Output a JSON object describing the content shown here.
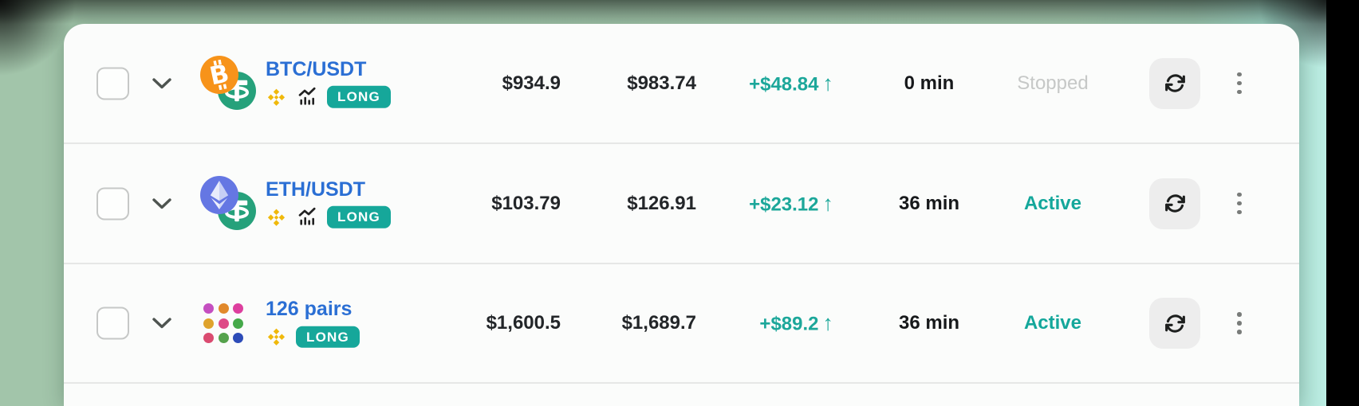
{
  "colors": {
    "accent_teal": "#16a79a",
    "profit_teal": "#1ca79a",
    "link_blue": "#2b6fd4",
    "stopped_gray": "#c6c8c7",
    "btc_orange": "#f7931a",
    "usdt_green": "#26a17b",
    "eth_blue": "#6577e3",
    "binance_yellow": "#f0b90b"
  },
  "table": {
    "rows": [
      {
        "pair": "BTC/USDT",
        "coin_icon": "btc-usdt-pair-icon",
        "exchange_icon": "binance-icon",
        "chart_icon": "chart-icon",
        "side_label": "LONG",
        "invested": "$934.9",
        "current_value": "$983.74",
        "profit": "+$48.84",
        "profit_arrow": "↑",
        "runtime": "0 min",
        "status": "Stopped",
        "status_key": "stopped"
      },
      {
        "pair": "ETH/USDT",
        "coin_icon": "eth-usdt-pair-icon",
        "exchange_icon": "binance-icon",
        "chart_icon": "chart-icon",
        "side_label": "LONG",
        "invested": "$103.79",
        "current_value": "$126.91",
        "profit": "+$23.12",
        "profit_arrow": "↑",
        "runtime": "36 min",
        "status": "Active",
        "status_key": "active"
      },
      {
        "pair": "126 pairs",
        "coin_icon": "pairs-grid-icon",
        "exchange_icon": "binance-icon",
        "side_label": "LONG",
        "invested": "$1,600.5",
        "current_value": "$1,689.7",
        "profit": "+$89.2",
        "profit_arrow": "↑",
        "runtime": "36 min",
        "status": "Active",
        "status_key": "active",
        "grid_colors": [
          "#c44fc0",
          "#e1892b",
          "#dd3f9e",
          "#dfa32c",
          "#de4a87",
          "#45a949",
          "#da4b70",
          "#55a24c",
          "#2d4cb8"
        ]
      }
    ]
  }
}
